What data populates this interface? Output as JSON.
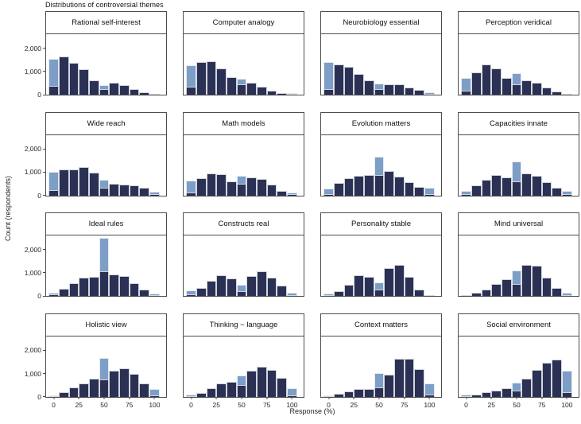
{
  "figure": {
    "suptitle": "Distributions of controversial themes",
    "xlabel": "Response (%)",
    "ylabel": "Count (respondents)"
  },
  "chart_data": {
    "type": "bar",
    "subtype": "histogram-small-multiples",
    "grid_layout": "4x4",
    "title": "Distributions of controversial themes",
    "xlabel": "Response (%)",
    "ylabel": "Count (respondents)",
    "bin_centers": [
      0,
      10,
      20,
      30,
      40,
      50,
      60,
      70,
      80,
      90,
      100
    ],
    "bin_width": 10,
    "xlim": [
      -7.5,
      111.5
    ],
    "ylim": [
      0,
      2600
    ],
    "x_ticks": [
      0,
      25,
      50,
      75,
      100
    ],
    "y_ticks": [
      {
        "value": 0,
        "label": "0"
      },
      {
        "value": 1000,
        "label": "1,000"
      },
      {
        "value": 2000,
        "label": "2,000"
      }
    ],
    "legend": "none",
    "series_colors": {
      "dark_navy": "#2b3154",
      "light_blue": "#7d9ec7"
    },
    "panel_border_color": "#4c4c4c",
    "panels": [
      {
        "title": "Rational self-interest",
        "dark": [
          380,
          1640,
          1380,
          1090,
          620,
          250,
          510,
          420,
          250,
          100,
          30
        ],
        "light": [
          1550,
          0,
          0,
          0,
          0,
          420,
          0,
          0,
          0,
          0,
          45
        ]
      },
      {
        "title": "Computer analogy",
        "dark": [
          340,
          1400,
          1430,
          1120,
          740,
          450,
          530,
          340,
          160,
          80,
          30
        ],
        "light": [
          1270,
          0,
          0,
          0,
          0,
          700,
          0,
          0,
          0,
          0,
          60
        ]
      },
      {
        "title": "Neurobiology essential",
        "dark": [
          250,
          1300,
          1210,
          900,
          620,
          225,
          450,
          450,
          305,
          190,
          40
        ],
        "light": [
          1410,
          0,
          0,
          0,
          0,
          485,
          0,
          0,
          0,
          0,
          100
        ]
      },
      {
        "title": "Perception veridical",
        "dark": [
          170,
          970,
          1300,
          1130,
          710,
          430,
          620,
          510,
          295,
          145,
          20
        ],
        "light": [
          735,
          0,
          0,
          0,
          0,
          940,
          0,
          0,
          0,
          0,
          45
        ]
      },
      {
        "title": "Wide reach",
        "dark": [
          240,
          1100,
          1125,
          1215,
          965,
          320,
          495,
          450,
          425,
          330,
          40
        ],
        "light": [
          1010,
          0,
          0,
          0,
          0,
          675,
          0,
          0,
          0,
          0,
          160
        ]
      },
      {
        "title": "Math models",
        "dark": [
          115,
          735,
          940,
          925,
          600,
          485,
          770,
          700,
          450,
          190,
          40
        ],
        "light": [
          645,
          0,
          0,
          0,
          0,
          825,
          0,
          0,
          0,
          0,
          135
        ]
      },
      {
        "title": "Evolution matters",
        "dark": [
          70,
          530,
          725,
          840,
          875,
          875,
          1045,
          795,
          585,
          355,
          70
        ],
        "light": [
          300,
          0,
          0,
          0,
          0,
          1655,
          0,
          0,
          0,
          0,
          320
        ]
      },
      {
        "title": "Capacities innate",
        "dark": [
          70,
          420,
          675,
          885,
          790,
          595,
          940,
          825,
          580,
          325,
          40
        ],
        "light": [
          175,
          0,
          0,
          0,
          0,
          1455,
          0,
          0,
          0,
          0,
          175
        ]
      },
      {
        "title": "Ideal rules",
        "dark": [
          80,
          300,
          570,
          790,
          840,
          1070,
          930,
          870,
          550,
          290,
          35
        ],
        "light": [
          130,
          0,
          0,
          0,
          0,
          2500,
          0,
          0,
          0,
          0,
          110
        ]
      },
      {
        "title": "Constructs real",
        "dark": [
          70,
          365,
          670,
          900,
          760,
          200,
          865,
          1070,
          805,
          445,
          40
        ],
        "light": [
          240,
          0,
          0,
          0,
          0,
          500,
          0,
          0,
          0,
          0,
          160
        ]
      },
      {
        "title": "Personality stable",
        "dark": [
          25,
          215,
          500,
          900,
          820,
          270,
          1205,
          1350,
          820,
          270,
          20
        ],
        "light": [
          100,
          0,
          0,
          0,
          0,
          580,
          0,
          0,
          0,
          0,
          45
        ]
      },
      {
        "title": "Mind universal",
        "dark": [
          10,
          135,
          270,
          520,
          725,
          520,
          1350,
          1320,
          785,
          365,
          30
        ],
        "light": [
          45,
          0,
          0,
          0,
          0,
          1100,
          0,
          0,
          0,
          0,
          135
        ]
      },
      {
        "title": "Holistic view",
        "dark": [
          20,
          215,
          390,
          580,
          780,
          750,
          1105,
          1225,
          1000,
          570,
          70
        ],
        "light": [
          70,
          0,
          0,
          0,
          0,
          1665,
          0,
          0,
          0,
          0,
          330
        ]
      },
      {
        "title": "Thinking ~ language",
        "dark": [
          35,
          170,
          375,
          570,
          660,
          490,
          1135,
          1305,
          1170,
          830,
          55
        ],
        "light": [
          90,
          0,
          0,
          0,
          0,
          910,
          0,
          0,
          0,
          0,
          375
        ]
      },
      {
        "title": "Context matters",
        "dark": [
          30,
          120,
          230,
          330,
          340,
          400,
          940,
          1630,
          1650,
          1190,
          100
        ],
        "light": [
          60,
          0,
          0,
          0,
          0,
          1020,
          0,
          0,
          0,
          0,
          565
        ]
      },
      {
        "title": "Social environment",
        "dark": [
          40,
          100,
          200,
          280,
          360,
          250,
          790,
          1170,
          1480,
          1610,
          185
        ],
        "light": [
          100,
          0,
          0,
          0,
          0,
          600,
          0,
          0,
          0,
          0,
          1110
        ]
      }
    ]
  }
}
